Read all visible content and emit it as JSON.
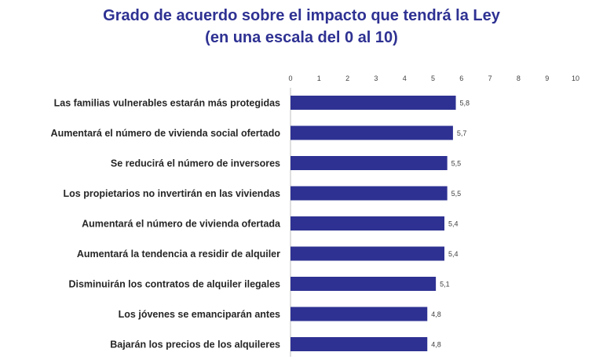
{
  "chart_data": {
    "type": "bar",
    "orientation": "horizontal",
    "title": "Grado de acuerdo sobre el impacto que tendrá la Ley",
    "subtitle": "(en una escala del 0 al 10)",
    "categories": [
      "Las familias vulnerables estarán más protegidas",
      "Aumentará el número de vivienda social ofertado",
      "Se reducirá el número de inversores",
      "Los propietarios no invertirán en las viviendas",
      "Aumentará el número de vivienda ofertada",
      "Aumentará la tendencia a residir de alquiler",
      "Disminuirán los contratos de alquiler ilegales",
      "Los jóvenes se emanciparán antes",
      "Bajarán los precios de los alquileres"
    ],
    "values": [
      5.8,
      5.7,
      5.5,
      5.5,
      5.4,
      5.4,
      5.1,
      4.8,
      4.8
    ],
    "value_labels": [
      "5,8",
      "5,7",
      "5,5",
      "5,5",
      "5,4",
      "5,4",
      "5,1",
      "4,8",
      "4,8"
    ],
    "xticks": [
      0,
      1,
      2,
      3,
      4,
      5,
      6,
      7,
      8,
      9,
      10
    ],
    "xlim": [
      0,
      10
    ],
    "axis_position": "top",
    "grid": false,
    "bar_color": "#2e3192",
    "title_color": "#2e3192"
  }
}
